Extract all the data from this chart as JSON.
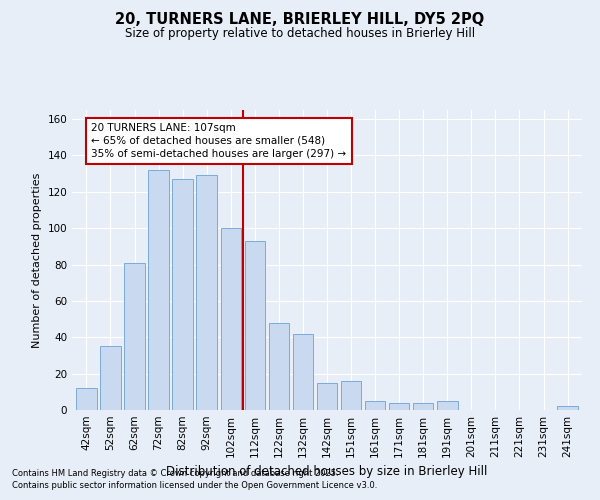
{
  "title1": "20, TURNERS LANE, BRIERLEY HILL, DY5 2PQ",
  "title2": "Size of property relative to detached houses in Brierley Hill",
  "xlabel": "Distribution of detached houses by size in Brierley Hill",
  "ylabel": "Number of detached properties",
  "categories": [
    "42sqm",
    "52sqm",
    "62sqm",
    "72sqm",
    "82sqm",
    "92sqm",
    "102sqm",
    "112sqm",
    "122sqm",
    "132sqm",
    "142sqm",
    "151sqm",
    "161sqm",
    "171sqm",
    "181sqm",
    "191sqm",
    "201sqm",
    "211sqm",
    "221sqm",
    "231sqm",
    "241sqm"
  ],
  "values": [
    12,
    35,
    81,
    132,
    127,
    129,
    100,
    93,
    48,
    42,
    15,
    16,
    5,
    4,
    4,
    5,
    0,
    0,
    0,
    0,
    2
  ],
  "bar_color": "#c9d9ef",
  "bar_edge_color": "#7aabdc",
  "vline_x_index": 6.5,
  "vline_color": "#c00000",
  "annotation_title": "20 TURNERS LANE: 107sqm",
  "annotation_line1": "← 65% of detached houses are smaller (548)",
  "annotation_line2": "35% of semi-detached houses are larger (297) →",
  "annotation_box_color": "white",
  "annotation_box_edge_color": "#c00000",
  "ylim": [
    0,
    165
  ],
  "yticks": [
    0,
    20,
    40,
    60,
    80,
    100,
    120,
    140,
    160
  ],
  "footnote1": "Contains HM Land Registry data © Crown copyright and database right 2025.",
  "footnote2": "Contains public sector information licensed under the Open Government Licence v3.0.",
  "bg_color": "#e8eef8",
  "grid_color": "#ffffff",
  "title1_fontsize": 10.5,
  "title2_fontsize": 8.5,
  "xlabel_fontsize": 8.5,
  "ylabel_fontsize": 8.0,
  "tick_fontsize": 7.5,
  "footnote_fontsize": 6.0,
  "ann_fontsize": 7.5
}
